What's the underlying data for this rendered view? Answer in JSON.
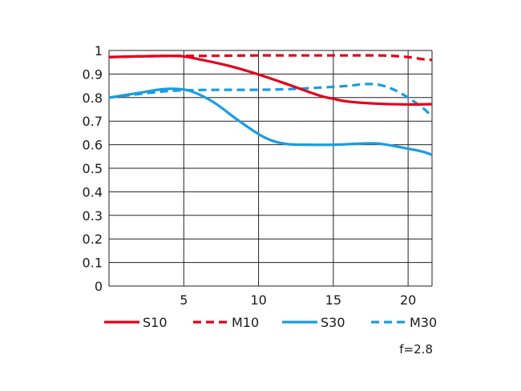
{
  "chart_data": {
    "type": "line",
    "title": "",
    "xlabel": "",
    "ylabel": "",
    "xlim": [
      0,
      21.6
    ],
    "ylim": [
      0,
      1
    ],
    "x_ticks": [
      "5",
      "10",
      "15",
      "20"
    ],
    "x_tick_values": [
      5,
      10,
      15,
      20
    ],
    "y_ticks": [
      "0",
      "0.1",
      "0.2",
      "0.3",
      "0.4",
      "0.5",
      "0.6",
      "0.7",
      "0.8",
      "0.9",
      "1"
    ],
    "y_tick_values": [
      0,
      0.1,
      0.2,
      0.3,
      0.4,
      0.5,
      0.6,
      0.7,
      0.8,
      0.9,
      1
    ],
    "grid": true,
    "legend_position": "bottom",
    "note": "f=2.8",
    "series": [
      {
        "name": "S10",
        "color": "#e3001b",
        "dash": "solid",
        "points": [
          [
            0,
            0.972
          ],
          [
            2,
            0.975
          ],
          [
            4,
            0.977
          ],
          [
            5,
            0.975
          ],
          [
            6,
            0.963
          ],
          [
            8,
            0.935
          ],
          [
            10,
            0.898
          ],
          [
            12,
            0.855
          ],
          [
            14,
            0.81
          ],
          [
            15,
            0.795
          ],
          [
            16,
            0.783
          ],
          [
            18,
            0.774
          ],
          [
            20,
            0.771
          ],
          [
            21.6,
            0.772
          ]
        ]
      },
      {
        "name": "M10",
        "color": "#e3001b",
        "dash": "dashed",
        "points": [
          [
            0,
            0.972
          ],
          [
            2,
            0.975
          ],
          [
            4,
            0.977
          ],
          [
            6,
            0.977
          ],
          [
            8,
            0.978
          ],
          [
            10,
            0.979
          ],
          [
            12,
            0.979
          ],
          [
            14,
            0.979
          ],
          [
            16,
            0.979
          ],
          [
            18,
            0.979
          ],
          [
            19,
            0.977
          ],
          [
            20,
            0.972
          ],
          [
            21,
            0.963
          ],
          [
            21.6,
            0.96
          ]
        ]
      },
      {
        "name": "S30",
        "color": "#1a9de0",
        "dash": "solid",
        "points": [
          [
            0,
            0.8
          ],
          [
            2,
            0.82
          ],
          [
            3.5,
            0.835
          ],
          [
            4.5,
            0.837
          ],
          [
            5.5,
            0.827
          ],
          [
            7,
            0.78
          ],
          [
            8.5,
            0.71
          ],
          [
            10,
            0.645
          ],
          [
            11,
            0.615
          ],
          [
            12,
            0.602
          ],
          [
            13,
            0.6
          ],
          [
            15,
            0.6
          ],
          [
            17,
            0.605
          ],
          [
            18,
            0.605
          ],
          [
            19,
            0.595
          ],
          [
            20,
            0.583
          ],
          [
            21,
            0.57
          ],
          [
            21.6,
            0.557
          ]
        ]
      },
      {
        "name": "M30",
        "color": "#1a9de0",
        "dash": "dashed",
        "points": [
          [
            0,
            0.8
          ],
          [
            2,
            0.815
          ],
          [
            4,
            0.828
          ],
          [
            6,
            0.832
          ],
          [
            8,
            0.833
          ],
          [
            10,
            0.833
          ],
          [
            12,
            0.836
          ],
          [
            14,
            0.842
          ],
          [
            16,
            0.85
          ],
          [
            17,
            0.857
          ],
          [
            18,
            0.855
          ],
          [
            19,
            0.835
          ],
          [
            20,
            0.8
          ],
          [
            21,
            0.755
          ],
          [
            21.6,
            0.72
          ]
        ]
      }
    ]
  }
}
